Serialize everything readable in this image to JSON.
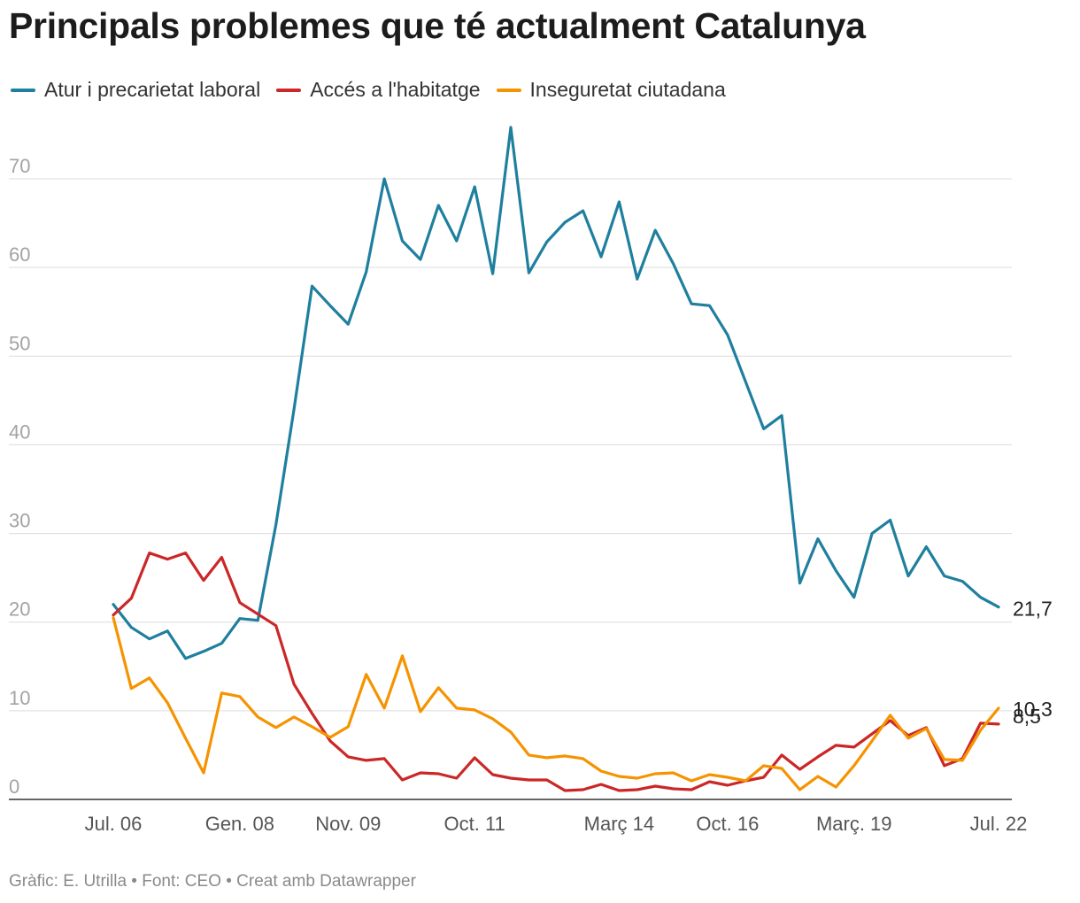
{
  "chart_data": {
    "type": "line",
    "title": "Principals problemes que té actualment Catalunya",
    "xlabel": "",
    "ylabel": "",
    "ylim": [
      0,
      70
    ],
    "y_ticks": [
      "0",
      "10",
      "20",
      "30",
      "40",
      "50",
      "60",
      "70"
    ],
    "x_ticks": [
      {
        "label": "Jul. 06",
        "index": 0
      },
      {
        "label": "Gen. 08",
        "index": 7
      },
      {
        "label": "Nov. 09",
        "index": 13
      },
      {
        "label": "Oct. 11",
        "index": 20
      },
      {
        "label": "Març 14",
        "index": 28
      },
      {
        "label": "Oct. 16",
        "index": 34
      },
      {
        "label": "Març. 19",
        "index": 41
      },
      {
        "label": "Jul. 22",
        "index": 49
      }
    ],
    "grid": true,
    "legend_position": "top-left",
    "series": [
      {
        "name": "Atur i precarietat laboral",
        "color": "#1f7f9e",
        "end_label": "21,7",
        "values": [
          22.0,
          19.4,
          18.1,
          19.0,
          15.9,
          16.7,
          17.6,
          20.4,
          20.2,
          31.0,
          44.0,
          57.9,
          55.7,
          53.6,
          59.5,
          70.0,
          63.0,
          60.9,
          67.0,
          63.0,
          69.1,
          59.3,
          75.8,
          59.4,
          62.9,
          65.1,
          66.4,
          61.2,
          67.4,
          58.7,
          64.2,
          60.4,
          55.9,
          55.7,
          52.4,
          47.1,
          41.8,
          43.3,
          24.4,
          29.4,
          25.8,
          22.8,
          30.0,
          31.5,
          25.2,
          28.5,
          25.2,
          24.6,
          22.8,
          21.7
        ]
      },
      {
        "name": "Accés a l'habitatge",
        "color": "#cb2727",
        "end_label": "8,5",
        "values": [
          20.8,
          22.7,
          27.8,
          27.1,
          27.8,
          24.7,
          27.3,
          22.2,
          20.9,
          19.6,
          13.0,
          9.7,
          6.6,
          4.8,
          4.4,
          4.6,
          2.2,
          3.0,
          2.9,
          2.4,
          4.7,
          2.8,
          2.4,
          2.2,
          2.2,
          1.0,
          1.1,
          1.7,
          1.0,
          1.1,
          1.5,
          1.2,
          1.1,
          2.0,
          1.6,
          2.1,
          2.5,
          5.0,
          3.4,
          4.8,
          6.1,
          5.9,
          7.4,
          8.9,
          7.2,
          8.1,
          3.8,
          4.6,
          8.6,
          8.5
        ]
      },
      {
        "name": "Inseguretat ciutadana",
        "color": "#f59300",
        "end_label": "10,3",
        "values": [
          20.5,
          12.5,
          13.7,
          10.9,
          6.9,
          3.0,
          12.0,
          11.6,
          9.3,
          8.1,
          9.3,
          8.2,
          7.0,
          8.2,
          14.1,
          10.3,
          16.2,
          9.9,
          12.6,
          10.3,
          10.1,
          9.1,
          7.6,
          5.0,
          4.7,
          4.9,
          4.6,
          3.2,
          2.6,
          2.4,
          2.9,
          3.0,
          2.1,
          2.8,
          2.5,
          2.1,
          3.8,
          3.5,
          1.1,
          2.6,
          1.4,
          3.8,
          6.6,
          9.5,
          6.9,
          8.0,
          4.5,
          4.4,
          7.8,
          10.3
        ]
      }
    ]
  },
  "footer": {
    "text": "Gràfic: E. Utrilla • Font: CEO • Creat amb Datawrapper"
  }
}
